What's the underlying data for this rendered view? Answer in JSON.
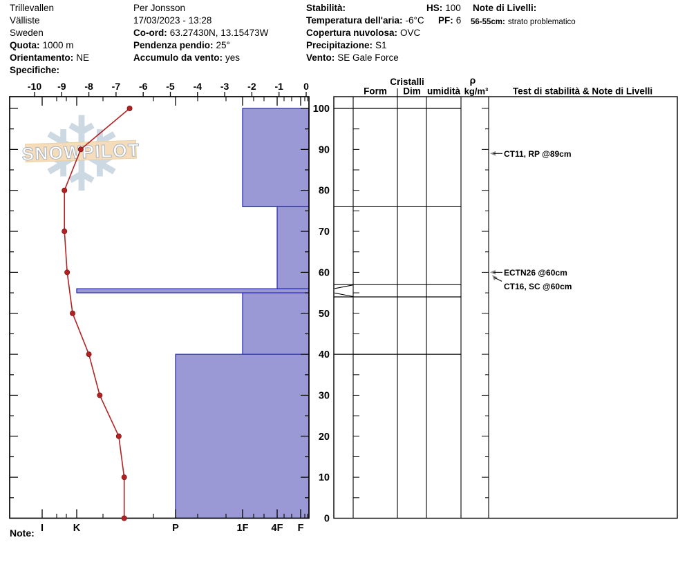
{
  "header": {
    "location_name": "Trillevallen",
    "location_area": "Välliste",
    "location_country": "Sweden",
    "quota_label": "Quota:",
    "quota_value": "1000 m",
    "orientamento_label": "Orientamento:",
    "orientamento_value": "NE",
    "specifiche_label": "Specifiche:",
    "observer": "Per Jonsson",
    "datetime": "17/03/2023 - 13:28",
    "coord_label": "Co-ord:",
    "coord_value": "63.27430N, 13.15473W",
    "pendenza_label": "Pendenza pendio:",
    "pendenza_value": "25°",
    "accumulo_label": "Accumulo da vento:",
    "accumulo_value": "yes",
    "stabilita_label": "Stabilità:",
    "temp_label": "Temperatura dell'aria:",
    "temp_value": "-6°C",
    "copertura_label": "Copertura nuvolosa:",
    "copertura_value": "OVC",
    "precipitazione_label": "Precipitazione:",
    "precipitazione_value": "S1",
    "vento_label": "Vento:",
    "vento_value": "SE Gale Force",
    "hs_label": "HS:",
    "hs_value": "100",
    "pf_label": "PF:",
    "pf_value": "6",
    "note_livelli_label": "Note di Livelli:",
    "layer_note_label": "56-55cm:",
    "layer_note_value": "strato problematico"
  },
  "logo": {
    "text": "SNOWPILOT",
    "flake_icon": "snowflake-icon"
  },
  "footer": {
    "note_label": "Note:"
  },
  "chart_data": {
    "type": "snow-profile",
    "depth_axis": {
      "unit": "cm",
      "min": 0,
      "max": 100,
      "tick_labels": [
        "0",
        "10",
        "20",
        "30",
        "40",
        "50",
        "60",
        "70",
        "80",
        "90",
        "100"
      ]
    },
    "temp_axis": {
      "unit": "°C",
      "min": -10,
      "max": 0,
      "tick_labels": [
        "-10",
        "-9",
        "-8",
        "-7",
        "-6",
        "-5",
        "-4",
        "-3",
        "-2",
        "-1",
        "0"
      ]
    },
    "hardness_axis": {
      "labels": [
        "I",
        "K",
        "P",
        "1F",
        "4F",
        "F"
      ],
      "label_x": {
        "I": 61,
        "K": 111,
        "P": 254,
        "1F": 351,
        "4F": 401,
        "F": 435
      },
      "minor_tick_x": [
        82,
        96,
        149,
        222,
        286,
        327,
        367,
        382,
        411,
        422,
        441,
        445
      ]
    },
    "temperature_profile": [
      {
        "depth_cm": 100,
        "temp_c": -6.5
      },
      {
        "depth_cm": 90,
        "temp_c": -8.3
      },
      {
        "depth_cm": 80,
        "temp_c": -8.9
      },
      {
        "depth_cm": 70,
        "temp_c": -8.9
      },
      {
        "depth_cm": 60,
        "temp_c": -8.8
      },
      {
        "depth_cm": 50,
        "temp_c": -8.6
      },
      {
        "depth_cm": 40,
        "temp_c": -8.0
      },
      {
        "depth_cm": 30,
        "temp_c": -7.6
      },
      {
        "depth_cm": 20,
        "temp_c": -6.9
      },
      {
        "depth_cm": 10,
        "temp_c": -6.7
      },
      {
        "depth_cm": 0,
        "temp_c": -6.7
      }
    ],
    "hardness_layers": [
      {
        "top_cm": 100,
        "bottom_cm": 76,
        "hardness": "1F"
      },
      {
        "top_cm": 76,
        "bottom_cm": 56,
        "hardness": "4F"
      },
      {
        "top_cm": 56,
        "bottom_cm": 55,
        "hardness": "K"
      },
      {
        "top_cm": 55,
        "bottom_cm": 40,
        "hardness": "1F"
      },
      {
        "top_cm": 40,
        "bottom_cm": 0,
        "hardness": "P"
      }
    ],
    "grain_table": {
      "header_group": "Cristalli",
      "columns": [
        "Form",
        "Dim",
        "umidità"
      ],
      "rho_label": "ρ",
      "rho_unit": "kg/m³",
      "tests_header": "Test di stabilità & Note di Livelli",
      "row_boundaries_cm": [
        100,
        76,
        57,
        54,
        40,
        0
      ],
      "problem_layer_top_cm": 57,
      "problem_layer_bottom_cm": 54
    },
    "stability_tests": [
      {
        "label": "CT11, RP @89cm",
        "depth_cm": 89,
        "leader": "straight"
      },
      {
        "label": "ECTN26 @60cm",
        "depth_cm": 60,
        "leader": "straight"
      },
      {
        "label": "CT16, SC @60cm",
        "depth_cm": 60,
        "leader": "angled"
      }
    ],
    "colors": {
      "bar_fill": "#9a99d6",
      "bar_border": "#2323b4",
      "temp_line": "#b22222",
      "temp_point_edge": "#7d1414",
      "logo_flake": "#ccd8e2",
      "logo_banner": "#f5dcba",
      "logo_banner_edge": "#eccfa0",
      "logo_text_edge": "#a9b3bc",
      "arrow": "#8a8a8a",
      "axis": "#000000"
    }
  }
}
